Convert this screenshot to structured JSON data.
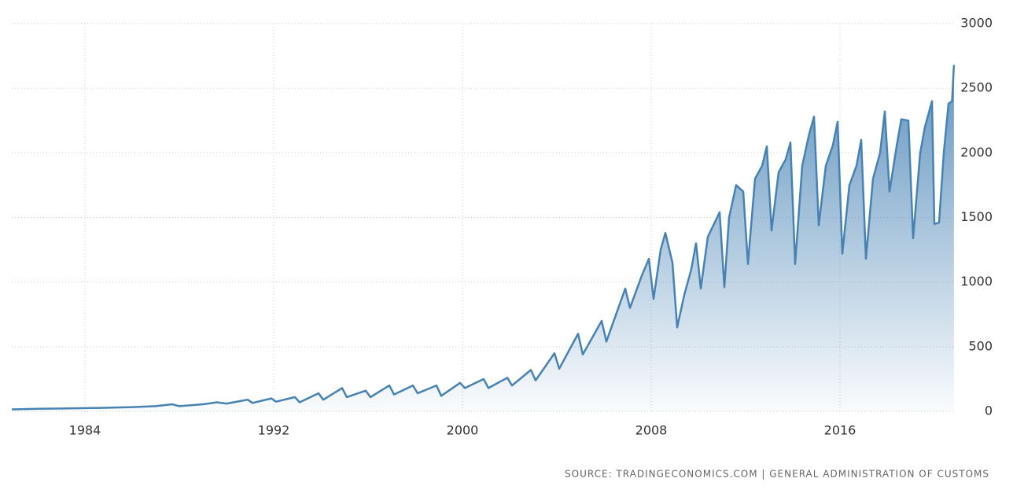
{
  "chart_data": {
    "type": "area",
    "source": "SOURCE: TRADINGECONOMICS.COM  |  GENERAL ADMINISTRATION OF CUSTOMS",
    "x": [
      1980.9,
      1982,
      1983,
      1984,
      1985,
      1986,
      1987,
      1987.7,
      1988,
      1989,
      1989.6,
      1990,
      1990.9,
      1991.1,
      1991.9,
      1992.1,
      1992.9,
      1993.1,
      1993.9,
      1994.1,
      1994.9,
      1995.1,
      1995.9,
      1996.1,
      1996.9,
      1997.1,
      1997.9,
      1998.1,
      1998.9,
      1999.1,
      1999.9,
      2000.1,
      2000.9,
      2001.1,
      2001.9,
      2002.1,
      2002.9,
      2003.1,
      2003.9,
      2004.1,
      2004.9,
      2005.1,
      2005.9,
      2006.1,
      2006.9,
      2007.1,
      2007.6,
      2007.9,
      2008.1,
      2008.4,
      2008.6,
      2008.9,
      2009.1,
      2009.4,
      2009.7,
      2009.9,
      2010.1,
      2010.4,
      2010.9,
      2011.1,
      2011.3,
      2011.6,
      2011.9,
      2012.1,
      2012.4,
      2012.7,
      2012.9,
      2013.1,
      2013.4,
      2013.7,
      2013.9,
      2014.1,
      2014.4,
      2014.7,
      2014.9,
      2015.1,
      2015.4,
      2015.7,
      2015.9,
      2016.1,
      2016.4,
      2016.7,
      2016.9,
      2017.1,
      2017.4,
      2017.7,
      2017.9,
      2018.1,
      2018.4,
      2018.6,
      2018.9,
      2019.1,
      2019.4,
      2019.6,
      2019.9,
      2020.0,
      2020.2,
      2020.4,
      2020.6,
      2020.75,
      2020.83
    ],
    "values": [
      15,
      20,
      22,
      25,
      28,
      33,
      40,
      55,
      40,
      55,
      70,
      60,
      90,
      65,
      100,
      75,
      110,
      70,
      140,
      90,
      180,
      110,
      160,
      110,
      200,
      130,
      200,
      140,
      200,
      120,
      220,
      180,
      250,
      180,
      260,
      200,
      320,
      240,
      450,
      330,
      600,
      440,
      700,
      540,
      950,
      800,
      1050,
      1180,
      870,
      1250,
      1380,
      1150,
      650,
      900,
      1100,
      1300,
      950,
      1350,
      1540,
      960,
      1500,
      1750,
      1700,
      1140,
      1800,
      1900,
      2050,
      1400,
      1850,
      1950,
      2080,
      1140,
      1900,
      2150,
      2280,
      1440,
      1900,
      2060,
      2240,
      1220,
      1750,
      1900,
      2100,
      1180,
      1800,
      2000,
      2320,
      1700,
      2050,
      2260,
      2250,
      1340,
      2000,
      2200,
      2400,
      1450,
      1460,
      2000,
      2380,
      2400,
      2680
    ],
    "color": "#4682b4",
    "xlim": [
      1980.9,
      2020.9
    ],
    "xticks": [
      1984,
      1992,
      2000,
      2008,
      2016
    ],
    "ylim": [
      0,
      3000
    ],
    "yticks": [
      0,
      500,
      1000,
      1500,
      2000,
      2500,
      3000
    ],
    "grid": true
  }
}
